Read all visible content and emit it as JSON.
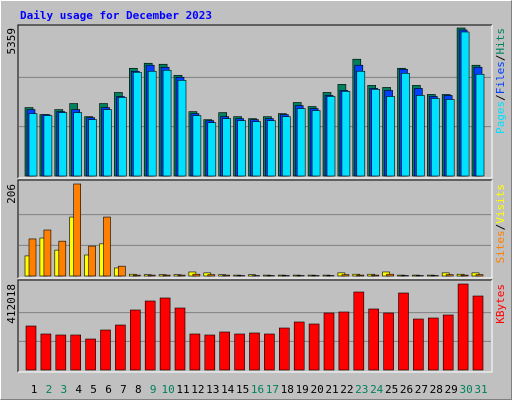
{
  "chart_data": [
    {
      "type": "bar",
      "title": "Daily usage for December 2023",
      "ylim": [
        0,
        5359
      ],
      "yticks": [
        5359
      ],
      "legend_separator": "/",
      "series": [
        {
          "name": "Hits",
          "color": "#00805c",
          "values": [
            2479,
            2224,
            2406,
            2625,
            2151,
            2625,
            3026,
            3901,
            4083,
            4047,
            3646,
            2333,
            2042,
            2297,
            2151,
            2078,
            2151,
            2260,
            2662,
            2516,
            3026,
            3318,
            4229,
            3281,
            3208,
            3901,
            3281,
            2953,
            2953,
            5359,
            4011
          ]
        },
        {
          "name": "Files",
          "color": "#0040ff",
          "values": [
            2406,
            2224,
            2333,
            2406,
            2115,
            2479,
            2880,
            3792,
            4011,
            3938,
            3573,
            2260,
            2005,
            2151,
            2078,
            2042,
            2078,
            2224,
            2552,
            2443,
            2917,
            3099,
            4011,
            3172,
            3099,
            3865,
            3172,
            2880,
            2917,
            5287,
            3938
          ]
        },
        {
          "name": "Pages",
          "color": "#00e0ff",
          "values": [
            2260,
            2188,
            2297,
            2297,
            2042,
            2406,
            2844,
            3755,
            3792,
            3828,
            3464,
            2188,
            1932,
            2078,
            2005,
            1969,
            2005,
            2151,
            2443,
            2370,
            2880,
            3063,
            3792,
            3136,
            2880,
            3719,
            2917,
            2807,
            2771,
            5214,
            3683
          ]
        }
      ]
    },
    {
      "type": "bar",
      "ylim": [
        0,
        206
      ],
      "yticks": [
        206
      ],
      "legend_separator": "/",
      "series": [
        {
          "name": "Visits",
          "color": "#ffff00",
          "values": [
            45,
            85,
            58,
            132,
            47,
            72,
            18,
            4,
            3,
            3,
            3,
            9,
            7,
            3,
            2,
            3,
            2,
            2,
            2,
            2,
            2,
            7,
            4,
            4,
            9,
            2,
            2,
            2,
            7,
            4,
            7
          ]
        },
        {
          "name": "Sites",
          "color": "#ff8000",
          "values": [
            83,
            103,
            78,
            206,
            67,
            132,
            22,
            2,
            2,
            2,
            2,
            4,
            3,
            2,
            1,
            1,
            1,
            1,
            1,
            1,
            1,
            3,
            2,
            2,
            4,
            1,
            1,
            1,
            3,
            2,
            3
          ]
        }
      ]
    },
    {
      "type": "bar",
      "ylim": [
        0,
        412018
      ],
      "yticks": [
        412018
      ],
      "series": [
        {
          "name": "KBytes",
          "color": "#ff0000",
          "values": [
            210800,
            172500,
            167700,
            167700,
            148500,
            191600,
            215600,
            287500,
            330600,
            345000,
            297000,
            172500,
            167700,
            182100,
            172500,
            177300,
            172500,
            201200,
            230000,
            220400,
            273100,
            277900,
            373700,
            292300,
            273100,
            368900,
            244300,
            249100,
            263500,
            412018,
            354500
          ]
        }
      ],
      "categories": [
        "1",
        "2",
        "3",
        "4",
        "5",
        "6",
        "7",
        "8",
        "9",
        "10",
        "11",
        "12",
        "13",
        "14",
        "15",
        "16",
        "17",
        "18",
        "19",
        "20",
        "21",
        "22",
        "23",
        "24",
        "25",
        "26",
        "27",
        "28",
        "29",
        "30",
        "31"
      ],
      "category_colors": [
        "#000000",
        "#00805c",
        "#00805c",
        "#000000",
        "#000000",
        "#000000",
        "#000000",
        "#000000",
        "#00805c",
        "#00805c",
        "#000000",
        "#000000",
        "#000000",
        "#000000",
        "#000000",
        "#00805c",
        "#00805c",
        "#000000",
        "#000000",
        "#000000",
        "#000000",
        "#000000",
        "#00805c",
        "#00805c",
        "#000000",
        "#000000",
        "#000000",
        "#000000",
        "#000000",
        "#00805c",
        "#00805c"
      ]
    }
  ]
}
